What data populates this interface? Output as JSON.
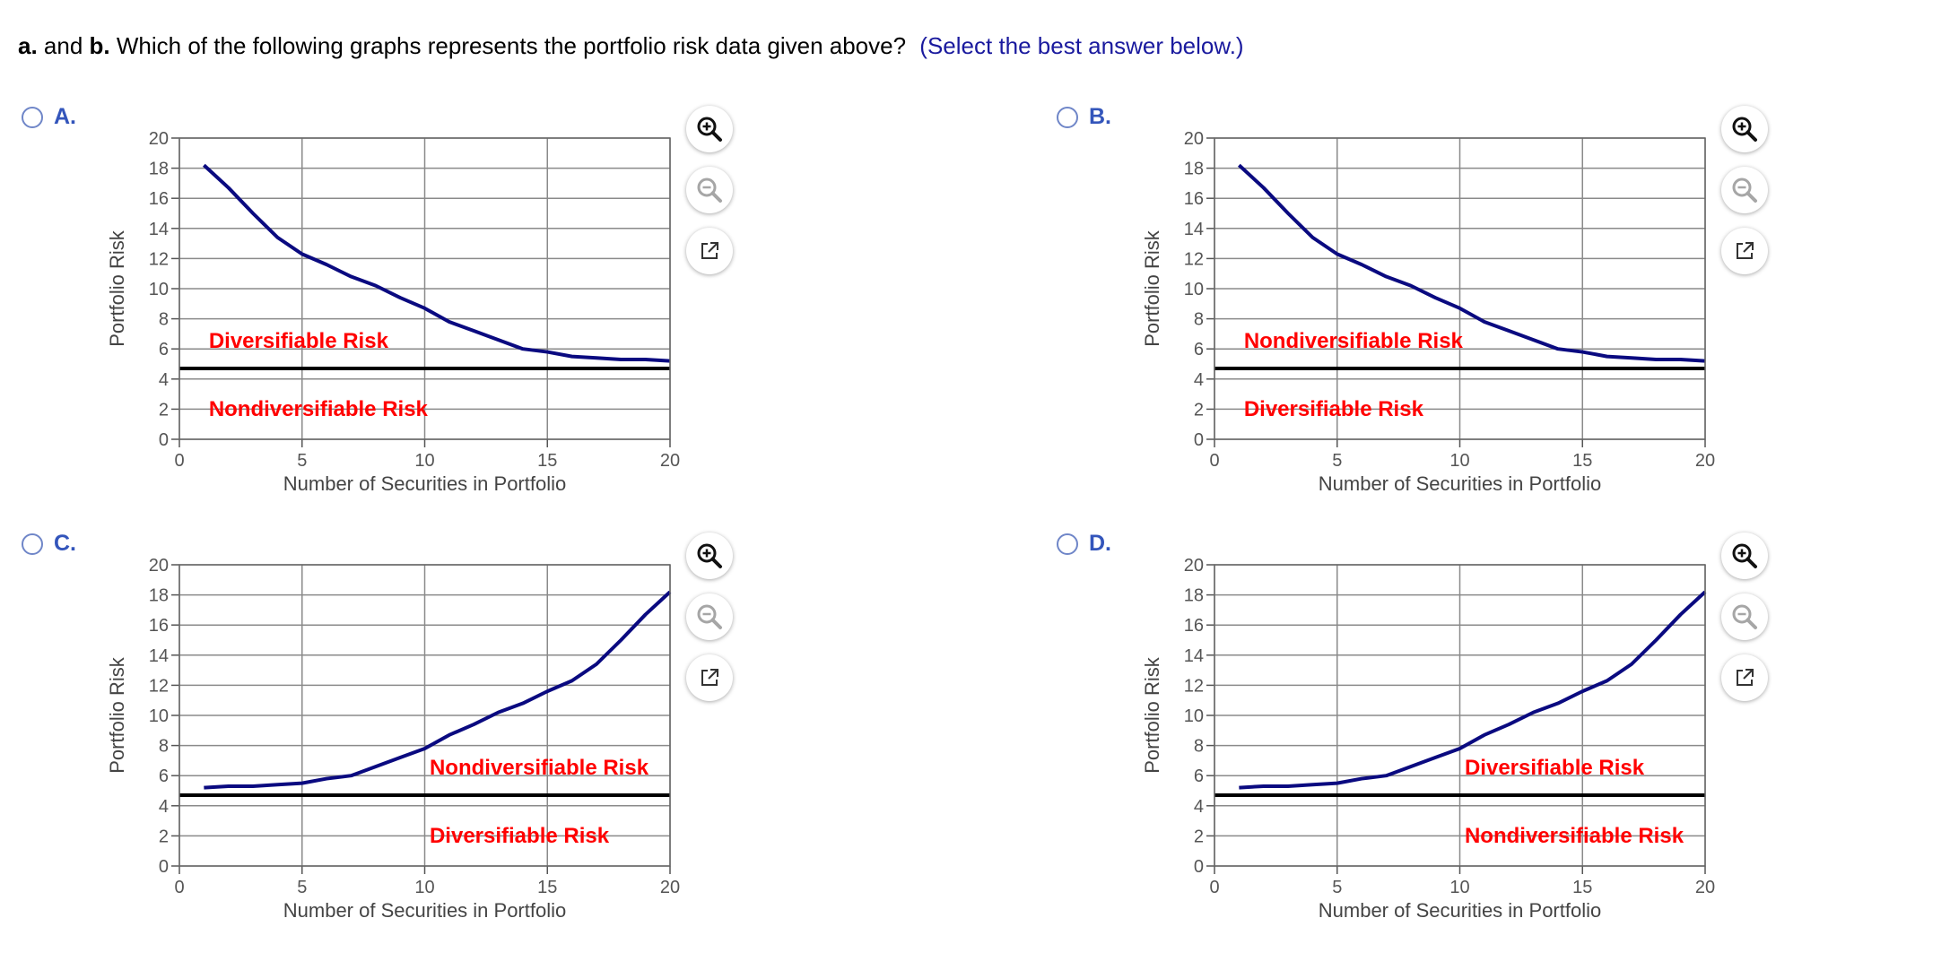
{
  "question": {
    "part_a": "a.",
    "and_text": "and",
    "part_b": "b.",
    "text": "Which of the following graphs represents the portfolio risk data given above?",
    "hint": "(Select the best answer below.)"
  },
  "tools": {
    "zoom_in": "zoom-in-icon",
    "zoom_out": "zoom-out-icon",
    "popout": "popout-icon"
  },
  "colors": {
    "curve": "#0a0a80",
    "risk_label": "#ff0000",
    "baseline": "#000000",
    "grid": "#8a8a8a",
    "radio_border": "#6f86c8",
    "option_label": "#3355bb"
  },
  "options": [
    {
      "label": "A.",
      "selected": false
    },
    {
      "label": "B.",
      "selected": false
    },
    {
      "label": "C.",
      "selected": false
    },
    {
      "label": "D.",
      "selected": false
    }
  ],
  "chart_data": [
    {
      "type": "line",
      "xlabel": "Number of Securities in Portfolio",
      "ylabel": "Portfolio Risk",
      "xlim": [
        0,
        20
      ],
      "ylim": [
        0,
        20
      ],
      "xticks": [
        0,
        5,
        10,
        15,
        20
      ],
      "yticks": [
        0,
        2,
        4,
        6,
        8,
        10,
        12,
        14,
        16,
        18,
        20
      ],
      "grid": true,
      "series": [
        {
          "name": "Portfolio Risk",
          "x": [
            1,
            2,
            3,
            4,
            5,
            6,
            7,
            8,
            9,
            10,
            11,
            12,
            13,
            14,
            15,
            16,
            17,
            18,
            19,
            20
          ],
          "values": [
            18.2,
            16.7,
            15.0,
            13.4,
            12.3,
            11.6,
            10.8,
            10.2,
            9.4,
            8.7,
            7.8,
            7.2,
            6.6,
            6.0,
            5.8,
            5.5,
            5.4,
            5.3,
            5.3,
            5.2
          ]
        }
      ],
      "baseline": 4.7,
      "upper_label": "Diversifiable Risk",
      "lower_label": "Nondiversifiable Risk",
      "upper_label_x": 1.2,
      "lower_label_x": 1.2
    },
    {
      "type": "line",
      "xlabel": "Number of Securities in Portfolio",
      "ylabel": "Portfolio Risk",
      "xlim": [
        0,
        20
      ],
      "ylim": [
        0,
        20
      ],
      "xticks": [
        0,
        5,
        10,
        15,
        20
      ],
      "yticks": [
        0,
        2,
        4,
        6,
        8,
        10,
        12,
        14,
        16,
        18,
        20
      ],
      "grid": true,
      "series": [
        {
          "name": "Portfolio Risk",
          "x": [
            1,
            2,
            3,
            4,
            5,
            6,
            7,
            8,
            9,
            10,
            11,
            12,
            13,
            14,
            15,
            16,
            17,
            18,
            19,
            20
          ],
          "values": [
            18.2,
            16.7,
            15.0,
            13.4,
            12.3,
            11.6,
            10.8,
            10.2,
            9.4,
            8.7,
            7.8,
            7.2,
            6.6,
            6.0,
            5.8,
            5.5,
            5.4,
            5.3,
            5.3,
            5.2
          ]
        }
      ],
      "baseline": 4.7,
      "upper_label": "Nondiversifiable Risk",
      "lower_label": "Diversifiable Risk",
      "upper_label_x": 1.2,
      "lower_label_x": 1.2
    },
    {
      "type": "line",
      "xlabel": "Number of Securities in Portfolio",
      "ylabel": "Portfolio Risk",
      "xlim": [
        0,
        20
      ],
      "ylim": [
        0,
        20
      ],
      "xticks": [
        0,
        5,
        10,
        15,
        20
      ],
      "yticks": [
        0,
        2,
        4,
        6,
        8,
        10,
        12,
        14,
        16,
        18,
        20
      ],
      "grid": true,
      "series": [
        {
          "name": "Portfolio Risk",
          "x": [
            1,
            2,
            3,
            4,
            5,
            6,
            7,
            8,
            9,
            10,
            11,
            12,
            13,
            14,
            15,
            16,
            17,
            18,
            19,
            20
          ],
          "values": [
            5.2,
            5.3,
            5.3,
            5.4,
            5.5,
            5.8,
            6.0,
            6.6,
            7.2,
            7.8,
            8.7,
            9.4,
            10.2,
            10.8,
            11.6,
            12.3,
            13.4,
            15.0,
            16.7,
            18.2
          ]
        }
      ],
      "baseline": 4.7,
      "upper_label": "Nondiversifiable Risk",
      "lower_label": "Diversifiable Risk",
      "upper_label_x": 10.2,
      "lower_label_x": 10.2
    },
    {
      "type": "line",
      "xlabel": "Number of Securities in Portfolio",
      "ylabel": "Portfolio Risk",
      "xlim": [
        0,
        20
      ],
      "ylim": [
        0,
        20
      ],
      "xticks": [
        0,
        5,
        10,
        15,
        20
      ],
      "yticks": [
        0,
        2,
        4,
        6,
        8,
        10,
        12,
        14,
        16,
        18,
        20
      ],
      "grid": true,
      "series": [
        {
          "name": "Portfolio Risk",
          "x": [
            1,
            2,
            3,
            4,
            5,
            6,
            7,
            8,
            9,
            10,
            11,
            12,
            13,
            14,
            15,
            16,
            17,
            18,
            19,
            20
          ],
          "values": [
            5.2,
            5.3,
            5.3,
            5.4,
            5.5,
            5.8,
            6.0,
            6.6,
            7.2,
            7.8,
            8.7,
            9.4,
            10.2,
            10.8,
            11.6,
            12.3,
            13.4,
            15.0,
            16.7,
            18.2
          ]
        }
      ],
      "baseline": 4.7,
      "upper_label": "Diversifiable Risk",
      "lower_label": "Nondiversifiable Risk",
      "upper_label_x": 10.2,
      "lower_label_x": 10.2
    }
  ]
}
